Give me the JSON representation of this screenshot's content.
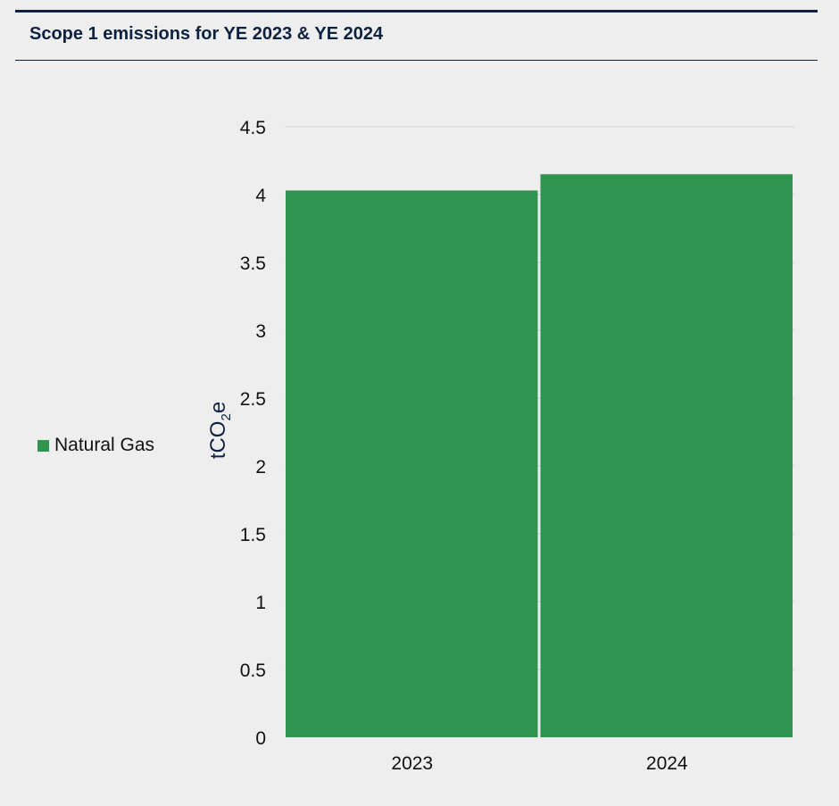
{
  "header": {
    "title": "Scope 1 emissions for YE 2023 & YE 2024"
  },
  "colors": {
    "navy": "#0d2240",
    "series_green": "#2e944f",
    "background": "#eeeeee"
  },
  "chart_data": {
    "type": "bar",
    "title": "Scope 1 emissions for YE 2023 & YE 2024",
    "categories": [
      "2023",
      "2024"
    ],
    "series": [
      {
        "name": "Natural Gas",
        "values": [
          4.03,
          4.15
        ],
        "color": "#2e944f"
      }
    ],
    "ylabel": "tCO2e",
    "ylabel_parts": {
      "main": "tCO",
      "sub": "2",
      "end": "e"
    },
    "xlabel": "",
    "ylim": [
      0,
      4.5
    ],
    "yticks": [
      "0",
      "0.5",
      "1",
      "1.5",
      "2",
      "2.5",
      "3",
      "3.5",
      "4",
      "4.5"
    ],
    "grid": true,
    "legend_position": "left"
  }
}
